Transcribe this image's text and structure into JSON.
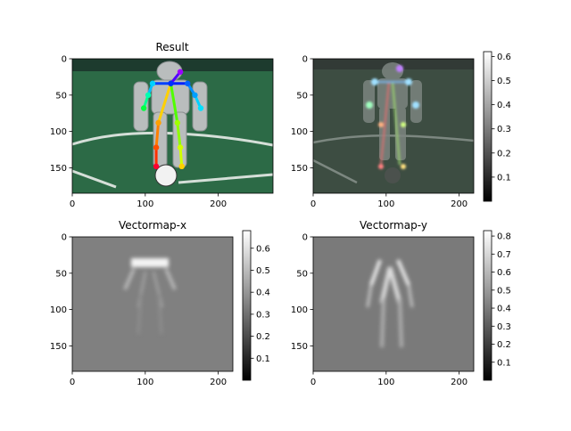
{
  "chart_data": [
    {
      "type": "image",
      "title": "Result",
      "xlim": [
        0,
        275
      ],
      "ylim": [
        185,
        0
      ],
      "xticks": [
        0,
        100,
        200
      ],
      "yticks": [
        0,
        50,
        100,
        150
      ],
      "keypoints": [
        {
          "name": "head",
          "x": 148,
          "y": 18,
          "color": "#9b00ff"
        },
        {
          "name": "neck",
          "x": 135,
          "y": 34,
          "color": "#0030ff"
        },
        {
          "name": "r_shoulder",
          "x": 110,
          "y": 34,
          "color": "#00d0ff"
        },
        {
          "name": "r_elbow",
          "x": 104,
          "y": 50,
          "color": "#00ffb0"
        },
        {
          "name": "r_wrist",
          "x": 98,
          "y": 68,
          "color": "#00ff40"
        },
        {
          "name": "l_shoulder",
          "x": 158,
          "y": 34,
          "color": "#0060ff"
        },
        {
          "name": "l_elbow",
          "x": 168,
          "y": 50,
          "color": "#00a0ff"
        },
        {
          "name": "l_wrist",
          "x": 176,
          "y": 68,
          "color": "#00e0ff"
        },
        {
          "name": "r_hip",
          "x": 118,
          "y": 88,
          "color": "#ffa000"
        },
        {
          "name": "r_knee",
          "x": 115,
          "y": 122,
          "color": "#ff5000"
        },
        {
          "name": "r_ankle",
          "x": 115,
          "y": 148,
          "color": "#ff0030"
        },
        {
          "name": "l_hip",
          "x": 144,
          "y": 88,
          "color": "#a0ff00"
        },
        {
          "name": "l_knee",
          "x": 148,
          "y": 122,
          "color": "#d0ff00"
        },
        {
          "name": "l_ankle",
          "x": 150,
          "y": 148,
          "color": "#ffd000"
        }
      ],
      "limbs": [
        {
          "from": "neck",
          "to": "r_shoulder",
          "color": "#0040ff"
        },
        {
          "from": "r_shoulder",
          "to": "r_elbow",
          "color": "#00c0ff"
        },
        {
          "from": "r_elbow",
          "to": "r_wrist",
          "color": "#00ff90"
        },
        {
          "from": "neck",
          "to": "l_shoulder",
          "color": "#0020ff"
        },
        {
          "from": "l_shoulder",
          "to": "l_elbow",
          "color": "#0090ff"
        },
        {
          "from": "l_elbow",
          "to": "l_wrist",
          "color": "#00d0ff"
        },
        {
          "from": "neck",
          "to": "r_hip",
          "color": "#ffd000"
        },
        {
          "from": "r_hip",
          "to": "r_knee",
          "color": "#ff8000"
        },
        {
          "from": "r_knee",
          "to": "r_ankle",
          "color": "#ff3000"
        },
        {
          "from": "neck",
          "to": "l_hip",
          "color": "#50ff00"
        },
        {
          "from": "l_hip",
          "to": "l_knee",
          "color": "#90ff00"
        },
        {
          "from": "l_knee",
          "to": "l_ankle",
          "color": "#d0ff00"
        },
        {
          "from": "neck",
          "to": "head",
          "color": "#5000ff"
        }
      ]
    },
    {
      "type": "heatmap",
      "title": "",
      "xlim": [
        0,
        220
      ],
      "ylim": [
        185,
        0
      ],
      "xticks": [
        0,
        100,
        200
      ],
      "yticks": [
        0,
        50,
        100,
        150
      ],
      "colorbar": {
        "range": [
          0.0,
          0.62
        ],
        "ticks": [
          0.1,
          0.2,
          0.3,
          0.4,
          0.5,
          0.6
        ]
      }
    },
    {
      "type": "heatmap",
      "title": "Vectormap-x",
      "xlim": [
        0,
        220
      ],
      "ylim": [
        185,
        0
      ],
      "xticks": [
        0,
        100,
        200
      ],
      "yticks": [
        0,
        50,
        100,
        150
      ],
      "colorbar": {
        "range": [
          0.0,
          0.68
        ],
        "ticks": [
          0.1,
          0.2,
          0.3,
          0.4,
          0.5,
          0.6
        ]
      }
    },
    {
      "type": "heatmap",
      "title": "Vectormap-y",
      "xlim": [
        0,
        220
      ],
      "ylim": [
        185,
        0
      ],
      "xticks": [
        0,
        100,
        200
      ],
      "yticks": [
        0,
        50,
        100,
        150
      ],
      "colorbar": {
        "range": [
          0.0,
          0.83
        ],
        "ticks": [
          0.1,
          0.2,
          0.3,
          0.4,
          0.5,
          0.6,
          0.7,
          0.8
        ]
      }
    }
  ]
}
